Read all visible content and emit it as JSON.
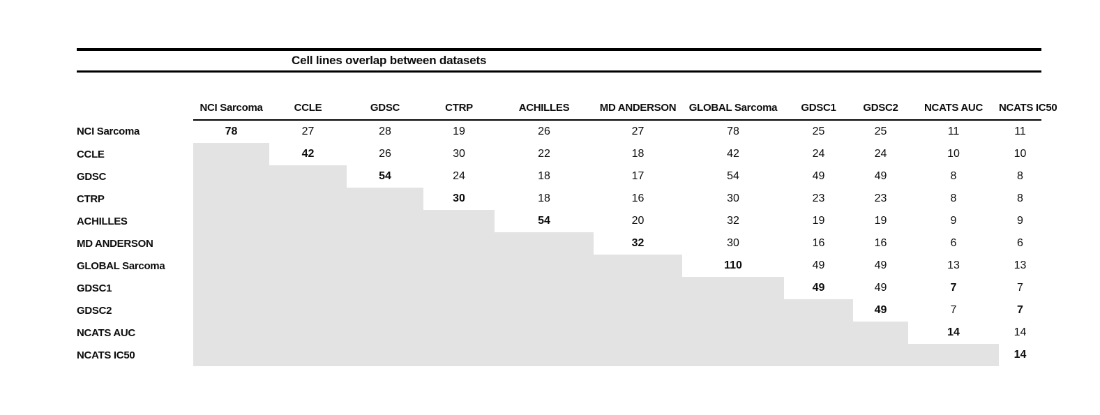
{
  "table": {
    "title": "Cell lines overlap between datasets",
    "shade_color": "#e3e3e3",
    "rule_color": "#000000",
    "columns": [
      "NCI Sarcoma",
      "CCLE",
      "GDSC",
      "CTRP",
      "ACHILLES",
      "MD ANDERSON",
      "GLOBAL Sarcoma",
      "GDSC1",
      "GDSC2",
      "NCATS AUC",
      "NCATS IC50"
    ],
    "rows": [
      {
        "label": "NCI Sarcoma",
        "cells": [
          {
            "v": 78,
            "bold": true
          },
          {
            "v": 27
          },
          {
            "v": 28
          },
          {
            "v": 19
          },
          {
            "v": 26
          },
          {
            "v": 27
          },
          {
            "v": 78
          },
          {
            "v": 25
          },
          {
            "v": 25
          },
          {
            "v": 11
          },
          {
            "v": 11
          }
        ]
      },
      {
        "label": "CCLE",
        "cells": [
          null,
          {
            "v": 42,
            "bold": true
          },
          {
            "v": 26
          },
          {
            "v": 30
          },
          {
            "v": 22
          },
          {
            "v": 18
          },
          {
            "v": 42
          },
          {
            "v": 24
          },
          {
            "v": 24
          },
          {
            "v": 10
          },
          {
            "v": 10
          }
        ]
      },
      {
        "label": "GDSC",
        "cells": [
          null,
          null,
          {
            "v": 54,
            "bold": true
          },
          {
            "v": 24
          },
          {
            "v": 18
          },
          {
            "v": 17
          },
          {
            "v": 54
          },
          {
            "v": 49
          },
          {
            "v": 49
          },
          {
            "v": 8
          },
          {
            "v": 8
          }
        ]
      },
      {
        "label": "CTRP",
        "cells": [
          null,
          null,
          null,
          {
            "v": 30,
            "bold": true
          },
          {
            "v": 18
          },
          {
            "v": 16
          },
          {
            "v": 30
          },
          {
            "v": 23
          },
          {
            "v": 23
          },
          {
            "v": 8
          },
          {
            "v": 8
          }
        ]
      },
      {
        "label": "ACHILLES",
        "cells": [
          null,
          null,
          null,
          null,
          {
            "v": 54,
            "bold": true
          },
          {
            "v": 20
          },
          {
            "v": 32
          },
          {
            "v": 19
          },
          {
            "v": 19
          },
          {
            "v": 9
          },
          {
            "v": 9
          }
        ]
      },
      {
        "label": "MD ANDERSON",
        "cells": [
          null,
          null,
          null,
          null,
          null,
          {
            "v": 32,
            "bold": true
          },
          {
            "v": 30
          },
          {
            "v": 16
          },
          {
            "v": 16
          },
          {
            "v": 6
          },
          {
            "v": 6
          }
        ]
      },
      {
        "label": "GLOBAL Sarcoma",
        "cells": [
          null,
          null,
          null,
          null,
          null,
          null,
          {
            "v": 110,
            "bold": true
          },
          {
            "v": 49
          },
          {
            "v": 49
          },
          {
            "v": 13
          },
          {
            "v": 13
          }
        ]
      },
      {
        "label": "GDSC1",
        "cells": [
          null,
          null,
          null,
          null,
          null,
          null,
          null,
          {
            "v": 49,
            "bold": true
          },
          {
            "v": 49
          },
          {
            "v": 7,
            "bold": true
          },
          {
            "v": 7
          }
        ]
      },
      {
        "label": "GDSC2",
        "cells": [
          null,
          null,
          null,
          null,
          null,
          null,
          null,
          null,
          {
            "v": 49,
            "bold": true
          },
          {
            "v": 7
          },
          {
            "v": 7,
            "bold": true
          }
        ]
      },
      {
        "label": "NCATS AUC",
        "cells": [
          null,
          null,
          null,
          null,
          null,
          null,
          null,
          null,
          null,
          {
            "v": 14,
            "bold": true
          },
          {
            "v": 14
          }
        ]
      },
      {
        "label": "NCATS IC50",
        "cells": [
          null,
          null,
          null,
          null,
          null,
          null,
          null,
          null,
          null,
          null,
          {
            "v": 14,
            "bold": true
          }
        ]
      }
    ]
  },
  "chart_data": {
    "type": "table",
    "title": "Cell lines overlap between datasets",
    "row_labels": [
      "NCI Sarcoma",
      "CCLE",
      "GDSC",
      "CTRP",
      "ACHILLES",
      "MD ANDERSON",
      "GLOBAL Sarcoma",
      "GDSC1",
      "GDSC2",
      "NCATS AUC",
      "NCATS IC50"
    ],
    "col_labels": [
      "NCI Sarcoma",
      "CCLE",
      "GDSC",
      "CTRP",
      "ACHILLES",
      "MD ANDERSON",
      "GLOBAL Sarcoma",
      "GDSC1",
      "GDSC2",
      "NCATS AUC",
      "NCATS IC50"
    ],
    "matrix": [
      [
        78,
        27,
        28,
        19,
        26,
        27,
        78,
        25,
        25,
        11,
        11
      ],
      [
        null,
        42,
        26,
        30,
        22,
        18,
        42,
        24,
        24,
        10,
        10
      ],
      [
        null,
        null,
        54,
        24,
        18,
        17,
        54,
        49,
        49,
        8,
        8
      ],
      [
        null,
        null,
        null,
        30,
        18,
        16,
        30,
        23,
        23,
        8,
        8
      ],
      [
        null,
        null,
        null,
        null,
        54,
        20,
        32,
        19,
        19,
        9,
        9
      ],
      [
        null,
        null,
        null,
        null,
        null,
        32,
        30,
        16,
        16,
        6,
        6
      ],
      [
        null,
        null,
        null,
        null,
        null,
        null,
        110,
        49,
        49,
        13,
        13
      ],
      [
        null,
        null,
        null,
        null,
        null,
        null,
        null,
        49,
        49,
        7,
        7
      ],
      [
        null,
        null,
        null,
        null,
        null,
        null,
        null,
        null,
        49,
        7,
        7
      ],
      [
        null,
        null,
        null,
        null,
        null,
        null,
        null,
        null,
        null,
        14,
        14
      ],
      [
        null,
        null,
        null,
        null,
        null,
        null,
        null,
        null,
        null,
        null,
        14
      ]
    ],
    "bold_cells": [
      [
        0,
        0
      ],
      [
        1,
        1
      ],
      [
        2,
        2
      ],
      [
        3,
        3
      ],
      [
        4,
        4
      ],
      [
        5,
        5
      ],
      [
        6,
        6
      ],
      [
        7,
        7
      ],
      [
        7,
        9
      ],
      [
        8,
        8
      ],
      [
        8,
        10
      ],
      [
        9,
        9
      ],
      [
        10,
        10
      ]
    ],
    "shaded_region": "lower-triangle",
    "layout": "upper-triangular overlap matrix; lower triangle shaded gray with no values"
  }
}
